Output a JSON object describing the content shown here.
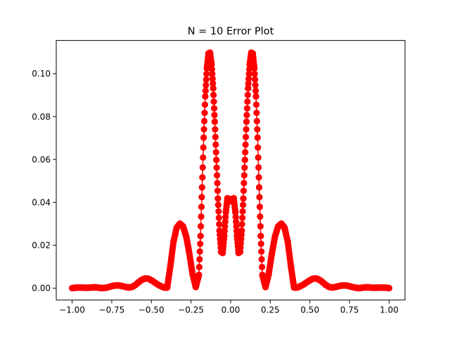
{
  "chart_data": {
    "type": "line",
    "title": "N = 10 Error Plot",
    "xlabel": "",
    "ylabel": "",
    "xlim": [
      -1.1,
      1.1
    ],
    "ylim": [
      -0.0055,
      0.1155
    ],
    "x_ticks": [
      -1.0,
      -0.75,
      -0.5,
      -0.25,
      0.0,
      0.25,
      0.5,
      0.75,
      1.0
    ],
    "x_tick_labels": [
      "−1.00",
      "−0.75",
      "−0.50",
      "−0.25",
      "0.00",
      "0.25",
      "0.50",
      "0.75",
      "1.00"
    ],
    "y_ticks": [
      0.0,
      0.02,
      0.04,
      0.06,
      0.08,
      0.1
    ],
    "y_tick_labels": [
      "0.00",
      "0.02",
      "0.04",
      "0.06",
      "0.08",
      "0.10"
    ],
    "grid": false,
    "marker": "o",
    "color": "#ff0000",
    "series": [
      {
        "x": [
          -1.0,
          -0.98,
          -0.96,
          -0.94,
          -0.92,
          -0.9,
          -0.88,
          -0.86,
          -0.84,
          -0.82,
          -0.8,
          -0.78,
          -0.76,
          -0.74,
          -0.72,
          -0.7,
          -0.68,
          -0.66,
          -0.64,
          -0.62,
          -0.6,
          -0.58,
          -0.56,
          -0.54,
          -0.52,
          -0.5,
          -0.48,
          -0.46,
          -0.44,
          -0.42,
          -0.4,
          -0.38,
          -0.36,
          -0.34,
          -0.32,
          -0.3,
          -0.28,
          -0.26,
          -0.24,
          -0.22,
          -0.2,
          -0.19,
          -0.18,
          -0.17,
          -0.16,
          -0.15,
          -0.14,
          -0.13,
          -0.12,
          -0.11,
          -0.1,
          -0.09,
          -0.08,
          -0.07,
          -0.06,
          -0.05,
          -0.04,
          -0.03,
          -0.02,
          -0.01,
          0.0,
          0.01,
          0.02,
          0.03,
          0.04,
          0.05,
          0.06,
          0.07,
          0.08,
          0.09,
          0.1,
          0.11,
          0.12,
          0.13,
          0.14,
          0.15,
          0.16,
          0.17,
          0.18,
          0.19,
          0.2,
          0.22,
          0.24,
          0.26,
          0.28,
          0.3,
          0.32,
          0.34,
          0.36,
          0.38,
          0.4,
          0.42,
          0.44,
          0.46,
          0.48,
          0.5,
          0.52,
          0.54,
          0.56,
          0.58,
          0.6,
          0.62,
          0.64,
          0.66,
          0.68,
          0.7,
          0.72,
          0.74,
          0.76,
          0.78,
          0.8,
          0.82,
          0.84,
          0.86,
          0.88,
          0.9,
          0.92,
          0.94,
          0.96,
          0.98,
          1.0
        ],
        "y": [
          0.0,
          0.0002,
          0.0003,
          0.0003,
          0.0002,
          0.0002,
          0.0003,
          0.0004,
          0.0003,
          0.0001,
          0.0001,
          0.0003,
          0.0007,
          0.0011,
          0.0013,
          0.0012,
          0.0009,
          0.0005,
          0.0003,
          0.0006,
          0.0015,
          0.0028,
          0.0039,
          0.0045,
          0.0044,
          0.0037,
          0.0027,
          0.0017,
          0.0009,
          0.0003,
          0.0003,
          0.0104,
          0.0218,
          0.0282,
          0.0301,
          0.0288,
          0.0241,
          0.016,
          0.0065,
          0.0005,
          0.0062,
          0.0243,
          0.047,
          0.0702,
          0.0894,
          0.1025,
          0.1094,
          0.1098,
          0.1043,
          0.0932,
          0.0776,
          0.0598,
          0.0418,
          0.0268,
          0.0169,
          0.0164,
          0.0244,
          0.0354,
          0.0419,
          0.0416,
          0.0405,
          0.0416,
          0.0419,
          0.0354,
          0.0244,
          0.0164,
          0.0169,
          0.0268,
          0.0418,
          0.0598,
          0.0776,
          0.0932,
          0.1043,
          0.1098,
          0.1094,
          0.1025,
          0.0894,
          0.0702,
          0.047,
          0.0243,
          0.0062,
          0.0005,
          0.0065,
          0.016,
          0.0241,
          0.0288,
          0.0301,
          0.0282,
          0.0218,
          0.0104,
          0.0003,
          0.0003,
          0.0009,
          0.0017,
          0.0027,
          0.0037,
          0.0044,
          0.0045,
          0.0039,
          0.0028,
          0.0015,
          0.0006,
          0.0003,
          0.0005,
          0.0009,
          0.0012,
          0.0013,
          0.0011,
          0.0007,
          0.0003,
          0.0001,
          0.0001,
          0.0003,
          0.0004,
          0.0003,
          0.0002,
          0.0002,
          0.0003,
          0.0003,
          0.0002,
          0.0
        ]
      }
    ]
  }
}
